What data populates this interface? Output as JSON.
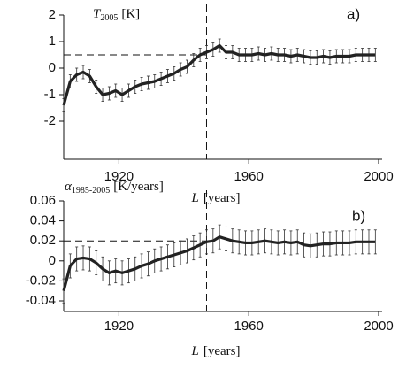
{
  "chart_data": [
    {
      "type": "line",
      "panel_label": "a)",
      "ylabel_symbol": "T",
      "ylabel_subscript": "2005",
      "ylabel_unit": "[K]",
      "xlabel_symbol": "L",
      "xlabel_unit": "[years]",
      "xlim": [
        1903,
        2000
      ],
      "xticks": [
        1920,
        1960,
        2000
      ],
      "ylim": [
        -2,
        2
      ],
      "yticks": [
        -2,
        -1,
        0,
        1,
        2
      ],
      "hline": 0.5,
      "vline": 1947,
      "x": [
        1903,
        1905,
        1907,
        1909,
        1911,
        1913,
        1915,
        1917,
        1919,
        1921,
        1923,
        1925,
        1927,
        1929,
        1931,
        1933,
        1935,
        1937,
        1939,
        1941,
        1943,
        1945,
        1947,
        1949,
        1951,
        1953,
        1955,
        1957,
        1959,
        1961,
        1963,
        1965,
        1967,
        1969,
        1971,
        1973,
        1975,
        1977,
        1979,
        1981,
        1983,
        1985,
        1987,
        1989,
        1991,
        1993,
        1995,
        1997,
        1999
      ],
      "series": [
        {
          "color": "#222222",
          "error": 0.25,
          "values": [
            -1.4,
            -0.5,
            -0.25,
            -0.15,
            -0.3,
            -0.7,
            -1.0,
            -0.95,
            -0.85,
            -1.0,
            -0.85,
            -0.7,
            -0.6,
            -0.55,
            -0.5,
            -0.4,
            -0.3,
            -0.2,
            -0.05,
            0.05,
            0.3,
            0.5,
            0.6,
            0.7,
            0.85,
            0.6,
            0.6,
            0.5,
            0.5,
            0.5,
            0.55,
            0.5,
            0.55,
            0.5,
            0.5,
            0.45,
            0.5,
            0.45,
            0.4,
            0.4,
            0.45,
            0.4,
            0.45,
            0.45,
            0.45,
            0.5,
            0.5,
            0.5,
            0.5
          ]
        }
      ]
    },
    {
      "type": "line",
      "panel_label": "b)",
      "ylabel_symbol": "α",
      "ylabel_subscript": "1985-2005",
      "ylabel_unit": "[K/years]",
      "xlabel_symbol": "L",
      "xlabel_unit": "[years]",
      "xlim": [
        1903,
        2000
      ],
      "xticks": [
        1920,
        1960,
        2000
      ],
      "ylim": [
        -0.04,
        0.06
      ],
      "yticks": [
        -0.04,
        -0.02,
        0,
        0.02,
        0.04,
        0.06
      ],
      "hline": 0.02,
      "vline": 1947,
      "x": [
        1903,
        1905,
        1907,
        1909,
        1911,
        1913,
        1915,
        1917,
        1919,
        1921,
        1923,
        1925,
        1927,
        1929,
        1931,
        1933,
        1935,
        1937,
        1939,
        1941,
        1943,
        1945,
        1947,
        1949,
        1951,
        1953,
        1955,
        1957,
        1959,
        1961,
        1963,
        1965,
        1967,
        1969,
        1971,
        1973,
        1975,
        1977,
        1979,
        1981,
        1983,
        1985,
        1987,
        1989,
        1991,
        1993,
        1995,
        1997,
        1999
      ],
      "series": [
        {
          "color": "#222222",
          "error": 0.012,
          "values": [
            -0.03,
            -0.005,
            0.002,
            0.003,
            0.002,
            -0.002,
            -0.008,
            -0.012,
            -0.01,
            -0.012,
            -0.01,
            -0.008,
            -0.005,
            -0.003,
            0.0,
            0.002,
            0.004,
            0.006,
            0.008,
            0.01,
            0.013,
            0.016,
            0.019,
            0.02,
            0.024,
            0.022,
            0.02,
            0.019,
            0.018,
            0.018,
            0.019,
            0.02,
            0.019,
            0.018,
            0.019,
            0.018,
            0.019,
            0.016,
            0.015,
            0.016,
            0.017,
            0.017,
            0.018,
            0.018,
            0.018,
            0.019,
            0.019,
            0.019,
            0.019
          ]
        }
      ]
    }
  ]
}
